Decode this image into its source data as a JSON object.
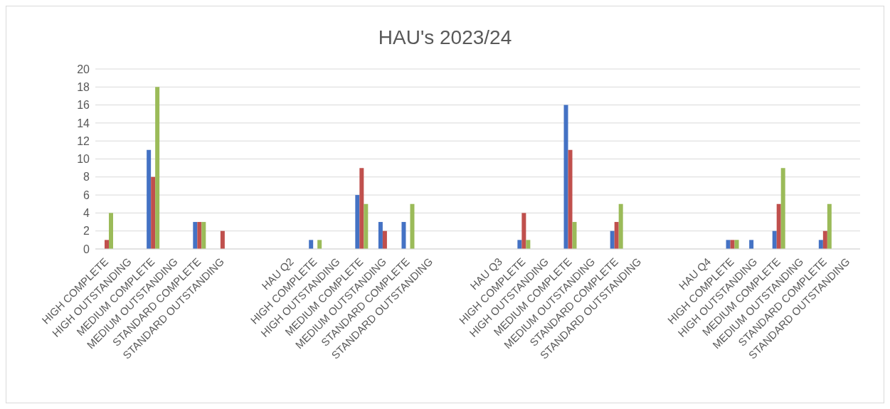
{
  "chart_data": {
    "type": "bar",
    "title": "HAU's 2023/24",
    "categories": [
      "HIGH COMPLETE",
      "HIGH OUTSTANDING",
      "MEDIUM COMPLETE",
      "MEDIUM OUTSTANDING",
      "STANDARD COMPLETE",
      "STANDARD OUTSTANDING",
      null,
      null,
      "HAU Q2",
      "HIGH COMPLETE",
      "HIGH OUTSTANDING",
      "MEDIUM COMPLETE",
      "MEDIUM OUTSTANDING",
      "STANDARD COMPLETE",
      "STANDARD OUTSTANDING",
      null,
      null,
      "HAU Q3",
      "HIGH COMPLETE",
      "HIGH OUTSTANDING",
      "MEDIUM COMPLETE",
      "MEDIUM OUTSTANDING",
      "STANDARD COMPLETE",
      "STANDARD OUTSTANDING",
      null,
      null,
      "HAU Q4",
      "HIGH COMPLETE",
      "HIGH OUTSTANDING",
      "MEDIUM COMPLETE",
      "MEDIUM OUTSTANDING",
      "STANDARD COMPLETE",
      "STANDARD OUTSTANDING"
    ],
    "series": [
      {
        "color": "#4472c4",
        "values": [
          0,
          0,
          11,
          0,
          3,
          0,
          null,
          null,
          null,
          1,
          0,
          6,
          3,
          3,
          0,
          null,
          null,
          null,
          1,
          0,
          16,
          0,
          2,
          0,
          null,
          null,
          null,
          1,
          1,
          2,
          0,
          1,
          0
        ]
      },
      {
        "color": "#c0504d",
        "values": [
          1,
          0,
          8,
          0,
          3,
          2,
          null,
          null,
          null,
          0,
          0,
          9,
          2,
          0,
          0,
          null,
          null,
          null,
          4,
          0,
          11,
          0,
          3,
          0,
          null,
          null,
          null,
          1,
          0,
          5,
          0,
          2,
          0
        ]
      },
      {
        "color": "#9bbb59",
        "values": [
          4,
          0,
          18,
          0,
          3,
          0,
          null,
          null,
          null,
          1,
          0,
          5,
          0,
          5,
          0,
          null,
          null,
          null,
          1,
          0,
          3,
          0,
          5,
          0,
          null,
          null,
          null,
          1,
          0,
          9,
          0,
          5,
          0
        ]
      }
    ],
    "ylim": [
      0,
      20
    ],
    "yticks": [
      0,
      2,
      4,
      6,
      8,
      10,
      12,
      14,
      16,
      18,
      20
    ],
    "grid": "y"
  }
}
